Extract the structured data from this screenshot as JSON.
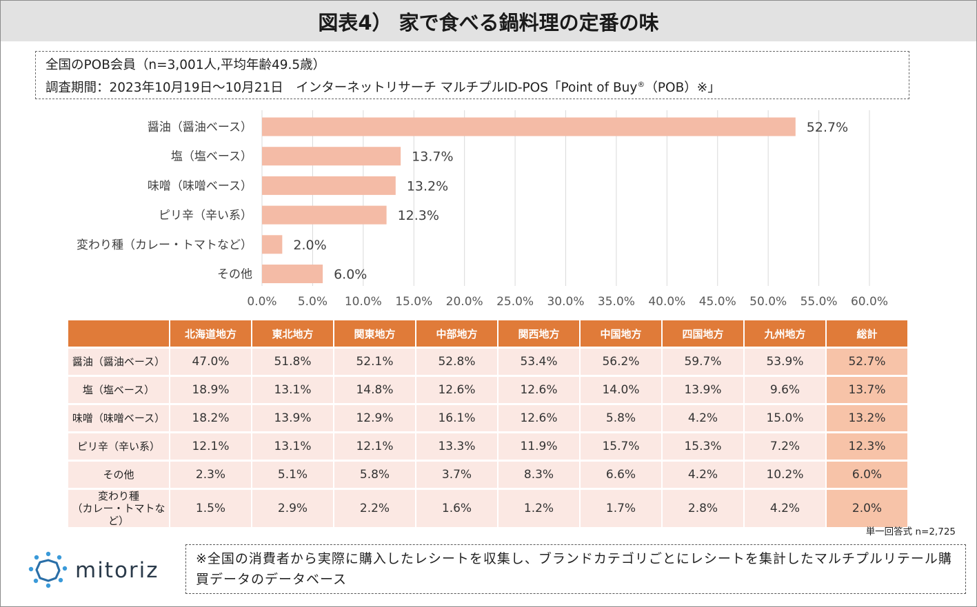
{
  "title": "図表4） 家で食べる鍋料理の定番の味",
  "info": {
    "line1": "全国のPOB会員（n=3,001人,平均年齢49.5歳）",
    "line2_pre": "調査期間：2023年10月19日～10月21日　インターネットリサーチ マルチプルID-POS「Point of Buy",
    "line2_reg": "®",
    "line2_post": "（POB）※」"
  },
  "chart_data": {
    "type": "bar",
    "orientation": "horizontal",
    "categories": [
      "醤油（醤油ベース）",
      "塩（塩ベース）",
      "味噌（味噌ベース）",
      "ピリ辛（辛い系）",
      "変わり種（カレー・トマトなど）",
      "その他"
    ],
    "values": [
      52.7,
      13.7,
      13.2,
      12.3,
      2.0,
      6.0
    ],
    "value_labels": [
      "52.7%",
      "13.7%",
      "13.2%",
      "12.3%",
      "2.0%",
      "6.0%"
    ],
    "xlim": [
      0,
      60
    ],
    "ticks": [
      "0.0%",
      "5.0%",
      "10.0%",
      "15.0%",
      "20.0%",
      "25.0%",
      "30.0%",
      "35.0%",
      "40.0%",
      "45.0%",
      "50.0%",
      "55.0%",
      "60.0%"
    ],
    "grid": true,
    "bar_color": "#f4bba6"
  },
  "table": {
    "headers": [
      "北海道地方",
      "東北地方",
      "関東地方",
      "中部地方",
      "関西地方",
      "中国地方",
      "四国地方",
      "九州地方",
      "総計"
    ],
    "rows": [
      {
        "label": "醤油（醤油ベース）",
        "values": [
          "47.0%",
          "51.8%",
          "52.1%",
          "52.8%",
          "53.4%",
          "56.2%",
          "59.7%",
          "53.9%",
          "52.7%"
        ]
      },
      {
        "label": "塩（塩ベース）",
        "values": [
          "18.9%",
          "13.1%",
          "14.8%",
          "12.6%",
          "12.6%",
          "14.0%",
          "13.9%",
          "9.6%",
          "13.7%"
        ]
      },
      {
        "label": "味噌（味噌ベース）",
        "values": [
          "18.2%",
          "13.9%",
          "12.9%",
          "16.1%",
          "12.6%",
          "5.8%",
          "4.2%",
          "15.0%",
          "13.2%"
        ]
      },
      {
        "label": "ピリ辛（辛い系）",
        "values": [
          "12.1%",
          "13.1%",
          "12.1%",
          "13.3%",
          "11.9%",
          "15.7%",
          "15.3%",
          "7.2%",
          "12.3%"
        ]
      },
      {
        "label": "その他",
        "values": [
          "2.3%",
          "5.1%",
          "5.8%",
          "3.7%",
          "8.3%",
          "6.6%",
          "4.2%",
          "10.2%",
          "6.0%"
        ]
      },
      {
        "label": "変わり種",
        "label2": "（カレー・トマトなど）",
        "values": [
          "1.5%",
          "2.9%",
          "2.2%",
          "1.6%",
          "1.2%",
          "1.7%",
          "2.8%",
          "4.2%",
          "2.0%"
        ]
      }
    ]
  },
  "note_n": "単一回答式 n=2,725",
  "logo_text": "mitoriz",
  "footnote": "※全国の消費者から実際に購入したレシートを収集し、ブランドカテゴリごとにレシートを集計したマルチプルリテール購買データのデータベース",
  "colors": {
    "header_orange": "#e07b39",
    "cell_pink": "#fbe8e3",
    "total_peach": "#f7c3a8",
    "logo_blue": "#3a9ad9"
  }
}
